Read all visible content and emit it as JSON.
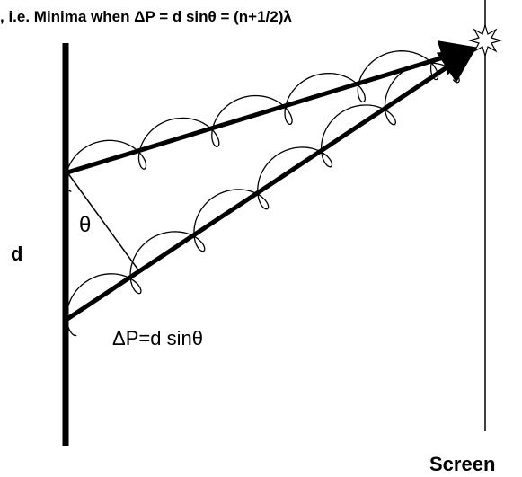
{
  "title": ", i.e. Minima when ΔP = d sinθ = (n+1/2)λ",
  "labels": {
    "theta": "θ",
    "d": "d",
    "path_difference": "ΔP=d sinθ",
    "screen": "Screen"
  }
}
